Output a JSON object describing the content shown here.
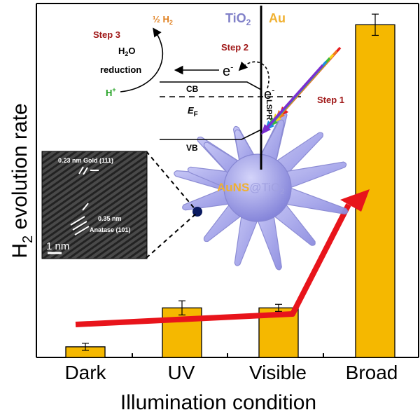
{
  "chart_data": {
    "type": "bar",
    "title": "",
    "xlabel": "Illumination condition",
    "ylabel_main": "H",
    "ylabel_sub": "2",
    "ylabel_rest": " evolution rate",
    "categories": [
      "Dark",
      "UV",
      "Visible",
      "Broad"
    ],
    "values": [
      0.03,
      0.14,
      0.14,
      0.94
    ],
    "errors": [
      0.01,
      0.02,
      0.01,
      0.03
    ],
    "ylim": [
      0,
      1.0
    ],
    "grid": false,
    "bar_color": "#f5b800",
    "trend_arrow_color": "#e8141b"
  },
  "schematic": {
    "tio2": "TiO",
    "tio2_sub": "2",
    "au": "Au",
    "step1": "Step 1",
    "step2": "Step 2",
    "step3": "Step 3",
    "half_h2_a": "½ H",
    "half_h2_b": "2",
    "h2o_a": "H",
    "h2o_b": "2",
    "h2o_c": "O",
    "reduction": "reduction",
    "hplus_a": "H",
    "hplus_b": "+",
    "electron": "e",
    "electron_sup": "-",
    "cb": "CB",
    "vb": "VB",
    "ef_a": "E",
    "ef_b": "F",
    "lspr": "LSPR",
    "particle_a": "AuNS",
    "particle_b": "@TiO",
    "particle_c": "2",
    "colors": {
      "tio2": "#8080c8",
      "au": "#f0b030",
      "step": "#a01818",
      "hplus": "#20a020",
      "h2": "#e08020",
      "spikes": "#9a9ae6"
    }
  },
  "micrograph": {
    "gold_label": "0.23 nm Gold (111)",
    "anatase_a": "0.35 nm",
    "anatase_b": "Anatase (101)",
    "scale": "1 nm"
  }
}
